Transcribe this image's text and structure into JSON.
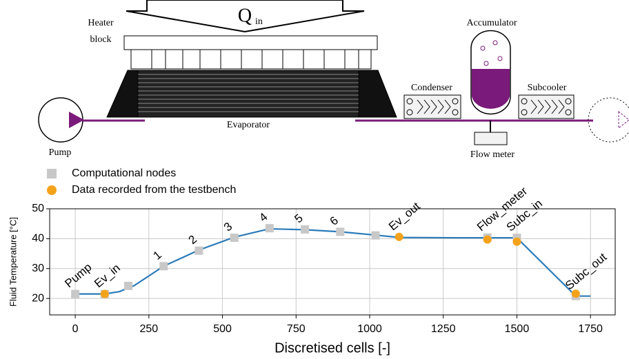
{
  "diagram": {
    "heat_input": {
      "symbol": "Q",
      "subscript": "in"
    },
    "heater_block": [
      "Heater",
      "block"
    ],
    "accumulator": "Accumulator",
    "condenser": "Condenser",
    "subcooler": "Subcooler",
    "pump": "Pump",
    "evaporator": "Evaporator",
    "flow_meter": "Flow meter"
  },
  "chart_data": {
    "type": "line",
    "x_label": "Discretised cells [-]",
    "y_label": "Fluid Temperature [°C]",
    "xlim": [
      -87,
      1834
    ],
    "ylim": [
      14.5,
      50
    ],
    "xticks": [
      0,
      250,
      500,
      750,
      1000,
      1250,
      1500,
      1750
    ],
    "yticks": [
      20,
      30,
      40,
      50
    ],
    "grid": true,
    "series": [
      {
        "kind": "line",
        "color": "#2b7bb9",
        "x": [
          0,
          100,
          150,
          200,
          300,
          420,
          540,
          660,
          780,
          900,
          1020,
          1100,
          1300,
          1500,
          1700,
          1750
        ],
        "values": [
          21.5,
          21.5,
          22.3,
          24.3,
          30.8,
          36.2,
          40.5,
          43.3,
          43.0,
          42.3,
          41.2,
          40.4,
          40.3,
          40.3,
          20.8,
          20.8
        ]
      },
      {
        "name": "Computational nodes",
        "kind": "square",
        "color": "#c8c8c8",
        "x": [
          0,
          100,
          180,
          300,
          420,
          540,
          660,
          780,
          900,
          1020,
          1400,
          1500,
          1700
        ],
        "values": [
          21.5,
          21.5,
          24.2,
          30.8,
          36.0,
          40.3,
          43.5,
          43.1,
          42.3,
          41.1,
          40.4,
          40.3,
          20.8
        ]
      },
      {
        "name": "Data recorded from the testbench",
        "kind": "circle",
        "color": "#f5a21b",
        "x": [
          100,
          1100,
          1400,
          1500,
          1700
        ],
        "values": [
          21.5,
          40.6,
          39.7,
          39.0,
          21.6
        ]
      }
    ],
    "annotations": [
      {
        "text": "Pump",
        "x": 0,
        "y": 21.5
      },
      {
        "text": "Ev_in",
        "x": 100,
        "y": 21.5
      },
      {
        "text": "1",
        "x": 300,
        "y": 30.8
      },
      {
        "text": "2",
        "x": 420,
        "y": 36.0
      },
      {
        "text": "3",
        "x": 540,
        "y": 40.3
      },
      {
        "text": "4",
        "x": 660,
        "y": 43.5
      },
      {
        "text": "5",
        "x": 780,
        "y": 43.1
      },
      {
        "text": "6",
        "x": 900,
        "y": 42.3
      },
      {
        "text": "Ev_out",
        "x": 1100,
        "y": 40.6
      },
      {
        "text": "Flow_meter",
        "x": 1400,
        "y": 40.4
      },
      {
        "text": "Subc_in",
        "x": 1500,
        "y": 40.3
      },
      {
        "text": "Subc_out",
        "x": 1700,
        "y": 20.8
      }
    ]
  }
}
